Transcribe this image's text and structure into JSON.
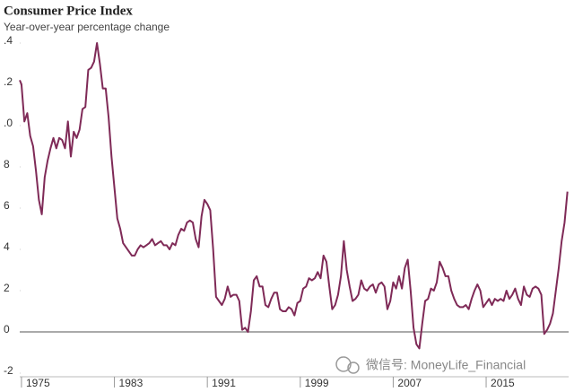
{
  "chart_data": {
    "type": "line",
    "title": "Consumer Price Index",
    "subtitle": "Year-over-year percentage change",
    "annotation": "微信号: MoneyLife_Financial",
    "color": "#7f2a57",
    "x": [
      1974.85,
      1975,
      1975.25,
      1975.5,
      1975.75,
      1976,
      1976.25,
      1976.5,
      1976.75,
      1977,
      1977.25,
      1977.5,
      1977.75,
      1978,
      1978.25,
      1978.5,
      1978.75,
      1979,
      1979.25,
      1979.5,
      1979.75,
      1980,
      1980.25,
      1980.5,
      1980.75,
      1981,
      1981.25,
      1981.5,
      1981.75,
      1982,
      1982.25,
      1982.5,
      1982.75,
      1983,
      1983.25,
      1983.5,
      1983.75,
      1984,
      1984.25,
      1984.5,
      1984.75,
      1985,
      1985.25,
      1985.5,
      1985.75,
      1986,
      1986.25,
      1986.5,
      1986.75,
      1987,
      1987.25,
      1987.5,
      1987.75,
      1988,
      1988.25,
      1988.5,
      1988.75,
      1989,
      1989.25,
      1989.5,
      1989.75,
      1990,
      1990.25,
      1990.5,
      1990.75,
      1991,
      1991.25,
      1991.5,
      1991.75,
      1992,
      1992.25,
      1992.5,
      1992.75,
      1993,
      1993.25,
      1993.5,
      1993.75,
      1994,
      1994.25,
      1994.5,
      1994.75,
      1995,
      1995.25,
      1995.5,
      1995.75,
      1996,
      1996.25,
      1996.5,
      1996.75,
      1997,
      1997.25,
      1997.5,
      1997.75,
      1998,
      1998.25,
      1998.5,
      1998.75,
      1999,
      1999.25,
      1999.5,
      1999.75,
      2000,
      2000.25,
      2000.5,
      2000.75,
      2001,
      2001.25,
      2001.5,
      2001.75,
      2002,
      2002.25,
      2002.5,
      2002.75,
      2003,
      2003.25,
      2003.5,
      2003.75,
      2004,
      2004.25,
      2004.5,
      2004.75,
      2005,
      2005.25,
      2005.5,
      2005.75,
      2006,
      2006.25,
      2006.5,
      2006.75,
      2007,
      2007.25,
      2007.5,
      2007.75,
      2008,
      2008.25,
      2008.5,
      2008.75,
      2009,
      2009.25,
      2009.5,
      2009.75,
      2010,
      2010.25,
      2010.5,
      2010.75,
      2011,
      2011.25,
      2011.5,
      2011.75,
      2012,
      2012.25,
      2012.5,
      2012.75,
      2013,
      2013.25,
      2013.5,
      2013.75,
      2014,
      2014.25,
      2014.5,
      2014.75,
      2015,
      2015.25,
      2015.5,
      2015.75,
      2016,
      2016.25,
      2016.5,
      2016.75,
      2017,
      2017.25,
      2017.5,
      2017.75,
      2018,
      2018.25,
      2018.5,
      2018.75,
      2019,
      2019.25,
      2019.5,
      2019.75,
      2020,
      2020.25,
      2020.5,
      2020.75,
      2021,
      2021.25,
      2021.5,
      2021.75,
      2022
    ],
    "values": [
      12.2,
      12.0,
      10.2,
      10.6,
      9.5,
      9.0,
      7.8,
      6.4,
      5.7,
      7.5,
      8.3,
      8.9,
      9.4,
      8.9,
      9.4,
      9.3,
      8.9,
      10.2,
      8.5,
      9.7,
      9.4,
      9.8,
      10.8,
      10.9,
      12.7,
      12.8,
      13.1,
      14.0,
      13.0,
      11.8,
      11.8,
      10.4,
      8.5,
      7.0,
      5.5,
      5.0,
      4.3,
      4.1,
      3.9,
      3.7,
      3.7,
      4.0,
      4.2,
      4.1,
      4.2,
      4.3,
      4.5,
      4.2,
      4.3,
      4.4,
      4.2,
      4.2,
      4.0,
      4.3,
      4.2,
      4.7,
      5.0,
      4.9,
      5.3,
      5.4,
      5.3,
      4.5,
      4.1,
      5.6,
      6.4,
      6.2,
      5.9,
      4.0,
      1.7,
      1.5,
      1.3,
      1.6,
      2.2,
      1.7,
      1.8,
      1.8,
      1.5,
      0.1,
      0.2,
      0,
      1.0,
      2.5,
      2.7,
      2.2,
      2.2,
      1.3,
      1.2,
      1.6,
      1.9,
      1.9,
      1.1,
      1.0,
      1.0,
      1.2,
      1.1,
      0.8,
      1.4,
      1.5,
      2.1,
      2.2,
      2.6,
      2.5,
      2.6,
      2.9,
      2.6,
      3.7,
      3.4,
      2.2,
      1.1,
      1.3,
      1.8,
      2.7,
      4.4,
      3.0,
      2.2,
      1.5,
      1.6,
      1.8,
      2.5,
      2.1,
      2.0,
      2.2,
      2.3,
      1.9,
      2.3,
      2.4,
      2.2,
      1.1,
      1.5,
      2.4,
      2.1,
      2.7,
      2.1,
      3.1,
      3.5,
      2.0,
      0.2,
      -0.6,
      -0.8,
      0.4,
      1.5,
      1.6,
      2.1,
      2.0,
      2.4,
      3.4,
      3.1,
      2.7,
      2.7,
      2.0,
      1.6,
      1.3,
      1.2,
      1.2,
      1.3,
      1.1,
      1.6,
      2.0,
      2.3,
      2.0,
      1.2,
      1.4,
      1.6,
      1.3,
      1.6,
      1.5,
      1.6,
      1.5,
      2.0,
      1.6,
      1.8,
      2.1,
      1.6,
      1.3,
      2.2,
      1.8,
      1.7,
      2.1,
      2.2,
      2.1,
      1.8,
      -0.1,
      0.1,
      0.4,
      0.9,
      2.0,
      3.1,
      4.4,
      5.3,
      6.8
    ],
    "xlim": [
      1974.85,
      2022.1
    ],
    "xticks": [
      1975,
      1983,
      1991,
      1999,
      2007,
      2015
    ],
    "ylim": [
      -2,
      14
    ],
    "yticks": [
      -2,
      0,
      2,
      4,
      6,
      8,
      {
        "value": 10,
        "label": ".0"
      },
      {
        "value": 12,
        "label": ".2"
      },
      {
        "value": 14,
        "label": ".4"
      }
    ]
  }
}
